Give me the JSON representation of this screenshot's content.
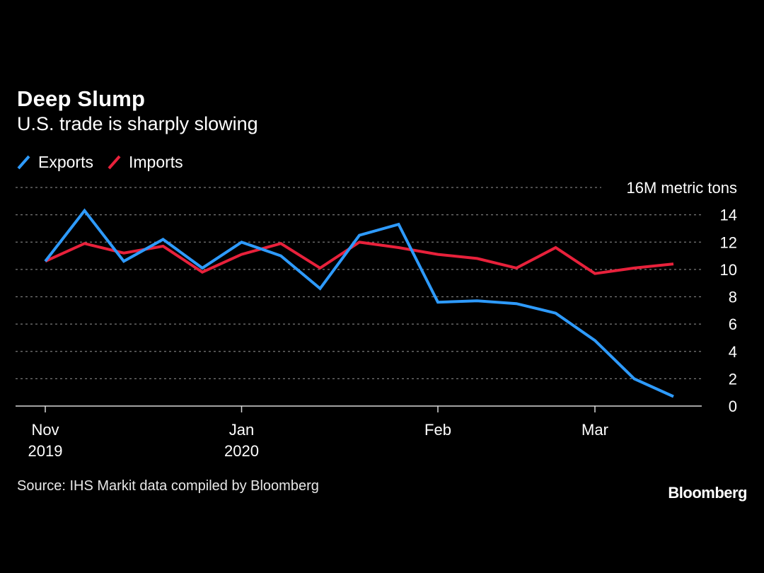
{
  "title": "Deep Slump",
  "subtitle": "U.S. trade is sharply slowing",
  "source": "Source: IHS Markit data compiled by Bloomberg",
  "brand": "Bloomberg",
  "colors": {
    "exports": "#2e9bff",
    "imports": "#e8213b",
    "background": "#000000",
    "grid": "#7a7a7a",
    "text": "#ffffff"
  },
  "chart_data": {
    "type": "line",
    "unit_label": "16M metric tons",
    "ylim": [
      0,
      16
    ],
    "yticks": [
      0,
      2,
      4,
      6,
      8,
      10,
      12,
      14
    ],
    "grid": true,
    "legend_position": "top-left",
    "x_labels": [
      {
        "line1": "Nov",
        "line2": "2019",
        "index": 0
      },
      {
        "line1": "Jan",
        "line2": "2020",
        "index": 5
      },
      {
        "line1": "Feb",
        "line2": "",
        "index": 10
      },
      {
        "line1": "Mar",
        "line2": "",
        "index": 14
      }
    ],
    "series": [
      {
        "name": "Exports",
        "color": "#2e9bff",
        "values": [
          10.6,
          14.3,
          10.6,
          12.2,
          10.1,
          12.0,
          11.0,
          8.6,
          12.5,
          13.3,
          7.6,
          7.7,
          7.5,
          6.8,
          4.8,
          2.0,
          0.7
        ]
      },
      {
        "name": "Imports",
        "color": "#e8213b",
        "values": [
          10.6,
          11.9,
          11.2,
          11.7,
          9.8,
          11.1,
          11.9,
          10.1,
          12.0,
          11.6,
          11.1,
          10.8,
          10.1,
          11.6,
          9.7,
          10.1,
          10.4
        ]
      }
    ]
  }
}
